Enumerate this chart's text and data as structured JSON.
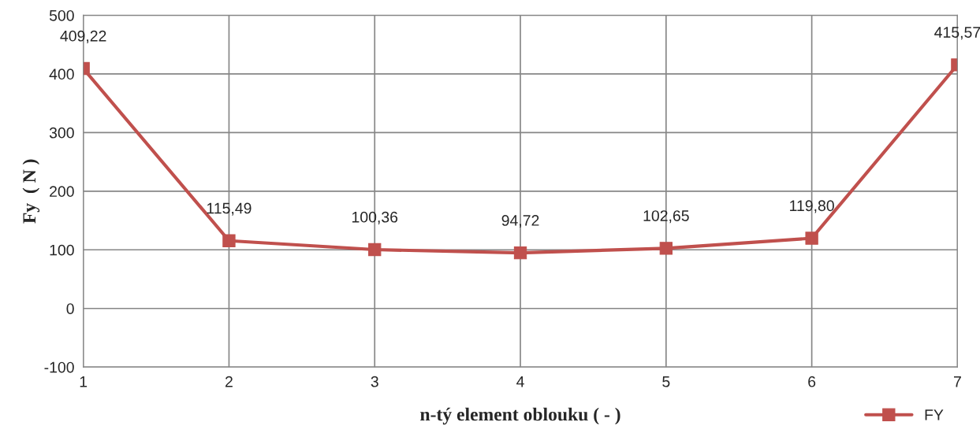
{
  "chart_data": {
    "type": "line",
    "xlabel": "n-tý element oblouku ( - )",
    "ylabel": "Fy  ( N )",
    "x": [
      1,
      2,
      3,
      4,
      5,
      6,
      7
    ],
    "series": [
      {
        "name": "FY",
        "color": "#c0504d",
        "values": [
          409.22,
          115.49,
          100.36,
          94.72,
          102.65,
          119.8,
          415.57
        ],
        "value_labels": [
          "409,22",
          "115,49",
          "100,36",
          "94,72",
          "102,65",
          "119,80",
          "415,57"
        ]
      }
    ],
    "xlim": [
      1,
      7
    ],
    "xticks": [
      1,
      2,
      3,
      4,
      5,
      6,
      7
    ],
    "ylim": [
      -100,
      500
    ],
    "yticks": [
      -100,
      0,
      100,
      200,
      300,
      400,
      500
    ],
    "grid": true,
    "legend": "bottom right",
    "marker": "square",
    "line_style": "solid"
  }
}
